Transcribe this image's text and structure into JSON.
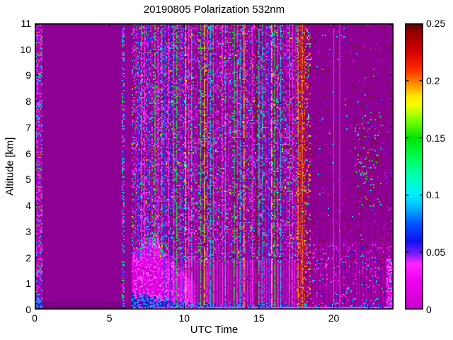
{
  "figure": {
    "title": "20190805 Polarization 532nm",
    "xlabel": "UTC Time",
    "ylabel": "Altitude [km]"
  },
  "chart_data": {
    "type": "heatmap",
    "title": "20190805 Polarization 532nm",
    "xlabel": "UTC Time",
    "ylabel": "Altitude [km]",
    "xlim": [
      0,
      24
    ],
    "ylim": [
      0,
      11
    ],
    "xticks": [
      0,
      5,
      10,
      15,
      20
    ],
    "yticks": [
      0,
      1,
      2,
      3,
      4,
      5,
      6,
      7,
      8,
      9,
      10,
      11
    ],
    "grid": false,
    "legend": false,
    "colorbar": {
      "min": 0,
      "max": 0.25,
      "tick_labels": [
        "0",
        "0.05",
        "0.1",
        "0.15",
        "0.2",
        "0.25"
      ],
      "tick_values": [
        0,
        0.05,
        0.1,
        0.15,
        0.2,
        0.25
      ],
      "interior_tick_values": [
        0.05,
        0.1,
        0.15,
        0.2
      ]
    },
    "colormap_stops": [
      [
        0.0,
        "#c800cc"
      ],
      [
        0.1,
        "#ee00ee"
      ],
      [
        0.16,
        "#ff22ff"
      ],
      [
        0.2,
        "#6a1aff"
      ],
      [
        0.24,
        "#1111ee"
      ],
      [
        0.3,
        "#0055ff"
      ],
      [
        0.36,
        "#00bbff"
      ],
      [
        0.4,
        "#00eeff"
      ],
      [
        0.46,
        "#00ffbb"
      ],
      [
        0.52,
        "#00ff66"
      ],
      [
        0.6,
        "#00e400"
      ],
      [
        0.66,
        "#77ff00"
      ],
      [
        0.71,
        "#eeff00"
      ],
      [
        0.74,
        "#ffee00"
      ],
      [
        0.8,
        "#ff7700"
      ],
      [
        0.84,
        "#ff2a00"
      ],
      [
        0.9,
        "#d40000"
      ],
      [
        0.96,
        "#a00000"
      ],
      [
        1.0,
        "#5c0000"
      ]
    ],
    "render": {
      "seed": 11,
      "bg": "#8e0094",
      "palette": {
        "M": "#ff2fff",
        "W": "#ff7bff",
        "m": "#d400d8",
        "P": "#b400ba",
        "c": "#00d4e8",
        "b": "#3a3aff",
        "B": "#1414cc",
        "L": "#5577ff",
        "g": "#22dd33",
        "y": "#e8e800",
        "r": "#dd2222",
        "o": "#ff8812",
        "R": "#6e1212"
      },
      "rects": [
        {
          "x0": 0.45,
          "x1": 6.5,
          "y0": 0,
          "y1": 0.3,
          "f": "#7d0087"
        },
        {
          "x0": 0.45,
          "x1": 6.5,
          "y0": 0,
          "y1": 0.1,
          "f": "#6f0078"
        },
        {
          "x0": 9.8,
          "x1": 17.55,
          "y0": 0,
          "y1": 1.9,
          "f": "#96059a"
        }
      ],
      "regions_pre": [
        {
          "x0": 0.04,
          "x1": 0.45,
          "y0": 0,
          "y1": 11,
          "d": 0.55,
          "base": "#a900b0",
          "p": [
            [
              "M",
              3
            ],
            [
              "c",
              2
            ],
            [
              "b",
              2
            ],
            [
              "r",
              1
            ],
            [
              "g",
              1
            ],
            [
              "P",
              2
            ]
          ]
        },
        {
          "x0": 0.04,
          "x1": 0.45,
          "y0": 0,
          "y1": 0.5,
          "d": 0.5,
          "base": "#2222cc",
          "p": [
            [
              "c",
              4
            ],
            [
              "L",
              2
            ],
            [
              "b",
              2
            ]
          ]
        },
        {
          "x0": 5.8,
          "x1": 5.95,
          "y0": 0,
          "y1": 11,
          "d": 0.45,
          "p": [
            [
              "b",
              3
            ],
            [
              "c",
              3
            ],
            [
              "M",
              3
            ],
            [
              "g",
              1
            ]
          ]
        },
        {
          "x0": 6.5,
          "x1": 9.8,
          "y0": 1.9,
          "y1": 11,
          "d": 0.45,
          "p": [
            [
              "M",
              30
            ],
            [
              "P",
              18
            ],
            [
              "b",
              12
            ],
            [
              "c",
              12
            ],
            [
              "g",
              8
            ],
            [
              "r",
              7
            ],
            [
              "y",
              3
            ],
            [
              "R",
              8
            ],
            [
              "L",
              4
            ]
          ]
        },
        {
          "x0": 9.8,
          "x1": 17.6,
          "y0": 1.8,
          "y1": 11,
          "d": 0.34,
          "p": [
            [
              "M",
              28
            ],
            [
              "P",
              14
            ],
            [
              "b",
              12
            ],
            [
              "c",
              12
            ],
            [
              "g",
              8
            ],
            [
              "r",
              8
            ],
            [
              "y",
              4
            ],
            [
              "R",
              12
            ],
            [
              "L",
              4
            ]
          ]
        },
        {
          "x0": 18.45,
          "x1": 24,
          "y0": 2.5,
          "y1": 11,
          "d": 0.05,
          "p": [
            [
              "R",
              6
            ],
            [
              "m",
              2
            ],
            [
              "b",
              1
            ],
            [
              "c",
              1
            ]
          ]
        },
        {
          "x0": 21.4,
          "x1": 23.3,
          "y0": 3.8,
          "y1": 7.6,
          "d": 0.13,
          "p": [
            [
              "R",
              5
            ],
            [
              "c",
              2
            ],
            [
              "g",
              2
            ],
            [
              "b",
              1
            ],
            [
              "o",
              1
            ]
          ]
        }
      ],
      "bl_band": {
        "profile": [
          [
            6.5,
            2.1
          ],
          [
            6.9,
            2.45
          ],
          [
            7.3,
            2.8
          ],
          [
            7.7,
            2.95
          ],
          [
            8.1,
            2.7
          ],
          [
            8.5,
            2.35
          ],
          [
            8.9,
            2.0
          ],
          [
            9.3,
            1.75
          ],
          [
            9.8,
            1.55
          ],
          [
            10.3,
            1.3
          ],
          [
            10.7,
            1.15
          ]
        ],
        "base": "#e200e6",
        "jitter": 0.18,
        "noiseD": 0.45,
        "noise": [
          [
            "W",
            3
          ],
          [
            "P",
            3
          ],
          [
            "M",
            2
          ]
        ],
        "fringe": {
          "x0": 6.8,
          "x1": 8.7,
          "depth": 0.3,
          "d": 0.5,
          "p": [
            [
              "c",
              4
            ],
            [
              "g",
              3
            ],
            [
              "y",
              1.5
            ],
            [
              "b",
              1.5
            ]
          ]
        }
      },
      "combs": [
        {
          "x0": 9.8,
          "x1": 17.55,
          "step": 0.185,
          "y0": 0,
          "y1": 1.9,
          "c": "M",
          "a": 0.7,
          "w": 1.6
        },
        {
          "x0": 10.0,
          "x1": 17.4,
          "step": 0.62,
          "y0": 0,
          "y1": 1.9,
          "c": "R",
          "a": 0.3,
          "w": 2.4
        },
        {
          "x0": 17.55,
          "x1": 24,
          "step": 0.22,
          "y0": 0,
          "y1": 2.6,
          "c": "m",
          "a": 0.75,
          "w": 1.4
        },
        {
          "x0": 18.0,
          "x1": 24,
          "step": 0.45,
          "y0": 2.6,
          "y1": 3.4,
          "c": "m",
          "a": 0.35,
          "w": 1.4
        }
      ],
      "regions_post": [
        {
          "x0": 17.5,
          "x1": 18.45,
          "y0": 0,
          "y1": 11,
          "d": 0.3,
          "p": [
            [
              "o",
              3
            ],
            [
              "r",
              3
            ],
            [
              "g",
              1
            ],
            [
              "c",
              1
            ],
            [
              "R",
              2
            ],
            [
              "y",
              1
            ]
          ]
        },
        {
          "x0": 18.45,
          "x1": 24,
          "y0": 0,
          "y1": 2.5,
          "d": 0.12,
          "p": [
            [
              "M",
              4
            ],
            [
              "c",
              2
            ],
            [
              "B",
              2
            ],
            [
              "R",
              2
            ]
          ]
        },
        {
          "x0": 23.55,
          "x1": 24,
          "y0": 0,
          "y1": 2.0,
          "d": 0.5,
          "base": "#c400c8",
          "p": [
            [
              "M",
              5
            ],
            [
              "c",
              1
            ],
            [
              "W",
              2
            ]
          ]
        }
      ],
      "blue_band": {
        "profile": [
          [
            6.5,
            0.55
          ],
          [
            7.5,
            0.5
          ],
          [
            8.5,
            0.42
          ],
          [
            9.5,
            0.3
          ],
          [
            11,
            0.22
          ],
          [
            13,
            0.18
          ],
          [
            16,
            0.15
          ],
          [
            20,
            0.12
          ],
          [
            24,
            0.12
          ]
        ],
        "base": "#2323cf",
        "jitter": 0.12,
        "noiseD": 0.55,
        "noise": [
          [
            "c",
            4
          ],
          [
            "L",
            2
          ],
          [
            "M",
            1
          ],
          [
            "B",
            2
          ]
        ]
      },
      "stripes": [
        {
          "x": 6.15,
          "c": "m",
          "a": 0.35,
          "w": 1.4,
          "dash": 1
        },
        {
          "x": 6.75,
          "c": "m",
          "y0": 2
        },
        {
          "x": 6.95,
          "c": "b",
          "y0": 2
        },
        {
          "x": 7.15,
          "c": "c",
          "y0": 2
        },
        {
          "x": 7.35,
          "c": "M",
          "y0": 2
        },
        {
          "x": 7.6,
          "c": "b",
          "y0": 2
        },
        {
          "x": 7.8,
          "c": "m",
          "y0": 2
        },
        {
          "x": 8.05,
          "c": "g",
          "y0": 2
        },
        {
          "x": 8.25,
          "c": "M",
          "y0": 2
        },
        {
          "x": 8.5,
          "c": "c",
          "y0": 2
        },
        {
          "x": 8.7,
          "c": "b"
        },
        {
          "x": 8.95,
          "c": "M"
        },
        {
          "x": 9.1,
          "c": "B"
        },
        {
          "x": 9.3,
          "c": "c"
        },
        {
          "x": 9.5,
          "c": "g"
        },
        {
          "x": 9.7,
          "c": "m"
        },
        {
          "x": 9.9,
          "c": "b"
        },
        {
          "x": 10.1,
          "c": "y"
        },
        {
          "x": 10.3,
          "c": "M"
        },
        {
          "x": 10.5,
          "c": "c"
        },
        {
          "x": 10.7,
          "c": "m"
        },
        {
          "x": 10.9,
          "c": "b"
        },
        {
          "x": 11.1,
          "c": "g"
        },
        {
          "x": 11.35,
          "c": "y"
        },
        {
          "x": 11.55,
          "c": "M"
        },
        {
          "x": 11.75,
          "c": "c"
        },
        {
          "x": 11.95,
          "c": "g"
        },
        {
          "x": 12.15,
          "c": "m"
        },
        {
          "x": 12.35,
          "c": "b"
        },
        {
          "x": 12.55,
          "c": "M"
        },
        {
          "x": 12.75,
          "c": "c"
        },
        {
          "x": 12.95,
          "c": "m"
        },
        {
          "x": 13.15,
          "c": "b"
        },
        {
          "x": 13.35,
          "c": "g"
        },
        {
          "x": 13.55,
          "c": "M"
        },
        {
          "x": 13.75,
          "c": "c"
        },
        {
          "x": 14.0,
          "c": "y"
        },
        {
          "x": 14.15,
          "c": "m"
        },
        {
          "x": 14.35,
          "c": "b"
        },
        {
          "x": 14.55,
          "c": "M"
        },
        {
          "x": 14.8,
          "c": "R",
          "a": 0.9,
          "w": 2.2
        },
        {
          "x": 15.0,
          "c": "c"
        },
        {
          "x": 15.25,
          "c": "c"
        },
        {
          "x": 15.45,
          "c": "m"
        },
        {
          "x": 15.65,
          "c": "b"
        },
        {
          "x": 15.85,
          "c": "y"
        },
        {
          "x": 16.05,
          "c": "g"
        },
        {
          "x": 16.25,
          "c": "M"
        },
        {
          "x": 16.45,
          "c": "c"
        },
        {
          "x": 16.65,
          "c": "b"
        },
        {
          "x": 16.85,
          "c": "m"
        },
        {
          "x": 17.05,
          "c": "g"
        },
        {
          "x": 17.25,
          "c": "M"
        },
        {
          "x": 17.45,
          "c": "r"
        },
        {
          "x": 17.62,
          "c": "o"
        },
        {
          "x": 17.78,
          "c": "r"
        },
        {
          "x": 17.9,
          "c": "o"
        },
        {
          "x": 18.02,
          "c": "r"
        },
        {
          "x": 20.0,
          "c": "M",
          "a": 0.75,
          "w": 1.4,
          "dash": 1
        },
        {
          "x": 20.4,
          "c": "M",
          "a": 0.75,
          "w": 1.4,
          "dash": 1
        }
      ],
      "bottom_band": {
        "x0": 6.5,
        "x1": 24,
        "y0": 0,
        "y1": 0.1,
        "d": 0.35,
        "base": "#ff2fff",
        "p": [
          [
            "c",
            3
          ],
          [
            "g",
            1
          ],
          [
            "B",
            2
          ]
        ]
      }
    }
  }
}
